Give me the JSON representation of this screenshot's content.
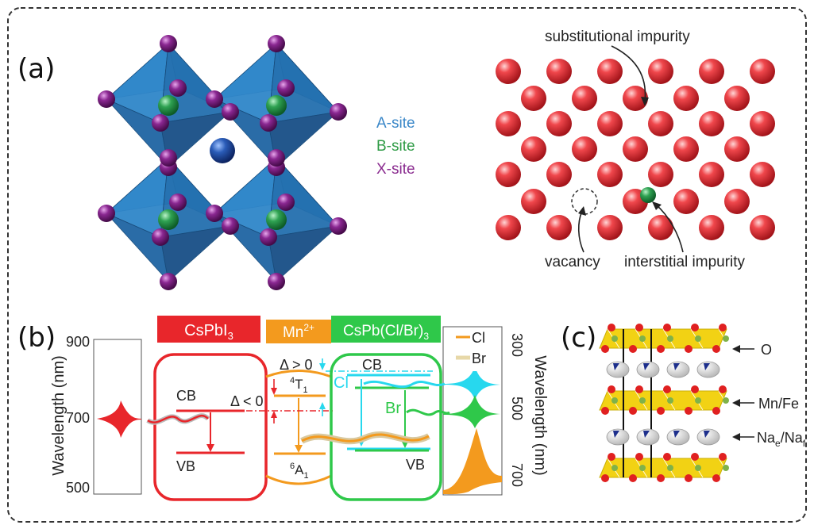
{
  "panels": {
    "a": {
      "label": "(a)"
    },
    "b": {
      "label": "(b)"
    },
    "c": {
      "label": "(c)"
    }
  },
  "perovskite": {
    "legend": [
      {
        "text": "A-site",
        "color": "#3a87c8"
      },
      {
        "text": "B-site",
        "color": "#2e9b45"
      },
      {
        "text": "X-site",
        "color": "#8a2b8f"
      }
    ],
    "colors": {
      "octahedron": "#2f86c9",
      "a_site": "#1e4fa0",
      "b_site": "#35a85a",
      "x_site": "#7a1d86"
    }
  },
  "defects": {
    "labels": {
      "substitutional": "substitutional impurity",
      "vacancy": "vacancy",
      "interstitial": "interstitial impurity"
    },
    "colors": {
      "host": "#e8333a",
      "substitutional": "#1f4f9e",
      "interstitial": "#2ea043"
    }
  },
  "energy_diagram": {
    "boxes": {
      "cspbi3": {
        "text": "CsPbI",
        "sub": "3",
        "color": "#e8262b"
      },
      "mn": {
        "text": "Mn",
        "sup": "2+",
        "color": "#f39a1e"
      },
      "cspbclbr": {
        "text": "CsPb(Cl/Br)",
        "sub": "3",
        "color": "#2fc84a"
      }
    },
    "levels": {
      "cb": "CB",
      "vb": "VB",
      "t1": "T",
      "t1_sup": "4",
      "t1_sub": "1",
      "a1": "A",
      "a1_sup": "6",
      "a1_sub": "1",
      "cl": "Cl",
      "br": "Br"
    },
    "deltas": {
      "neg": "Δ < 0",
      "pos": "Δ > 0"
    },
    "left_axis": {
      "label": "Wavelength (nm)",
      "ticks": [
        "900",
        "700",
        "500"
      ]
    },
    "right_axis": {
      "label": "Wavelength (nm)",
      "ticks": [
        "300",
        "500",
        "700"
      ]
    },
    "legend": [
      {
        "text": "Cl",
        "color": "#f39a1e"
      },
      {
        "text": "Br",
        "color": "#e7d8a8"
      }
    ],
    "colors": {
      "cl_level": "#27d8ee",
      "br_level": "#2fc84a",
      "mn_level": "#f39a1e",
      "red": "#e8262b"
    }
  },
  "layered": {
    "labels": {
      "o": "O",
      "mnfe": "Mn/Fe",
      "na": "Na",
      "na_sub_e": "e",
      "na_sep": "/Na",
      "na_sub_f": "f"
    },
    "colors": {
      "layer": "#f2d214",
      "oxygen": "#e02020",
      "sodium_dark": "#1d2f8c",
      "sodium_light": "#d9d9d9"
    }
  }
}
